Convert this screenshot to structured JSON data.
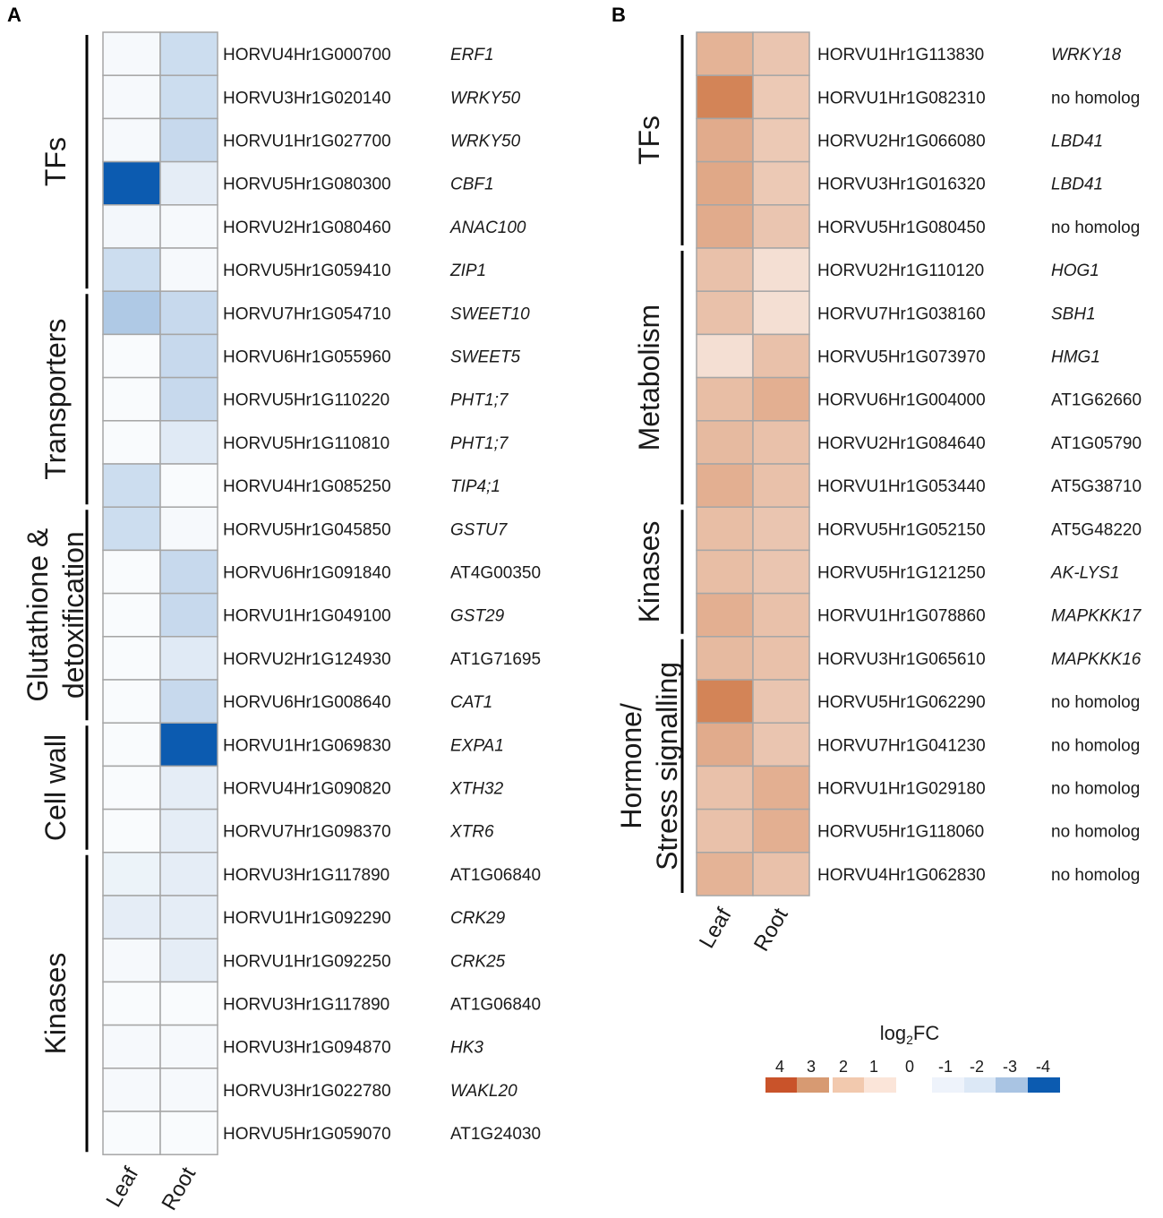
{
  "chart_data": [
    {
      "type": "heatmap",
      "panel_label": "A",
      "columns": [
        "Leaf",
        "Root"
      ],
      "groups": [
        {
          "name": "TFs",
          "label_lines": [
            "TFs"
          ],
          "rows": [
            {
              "gene": "HORVU4Hr1G000700",
              "homolog": "ERF1",
              "italic": true,
              "values": [
                -0.5,
                -1.5
              ]
            },
            {
              "gene": "HORVU3Hr1G020140",
              "homolog": "WRKY50",
              "italic": true,
              "values": [
                -0.5,
                -1.5
              ]
            },
            {
              "gene": "HORVU1Hr1G027700",
              "homolog": "WRKY50",
              "italic": true,
              "values": [
                -0.5,
                -1.6
              ]
            },
            {
              "gene": "HORVU5Hr1G080300",
              "homolog": "CBF1",
              "italic": true,
              "values": [
                -4,
                -1
              ]
            },
            {
              "gene": "HORVU2Hr1G080460",
              "homolog": "ANAC100",
              "italic": true,
              "values": [
                -0.6,
                -0.5
              ]
            },
            {
              "gene": "HORVU5Hr1G059410",
              "homolog": "ZIP1",
              "italic": true,
              "values": [
                -1.5,
                -0.5
              ]
            }
          ]
        },
        {
          "name": "Transporters",
          "label_lines": [
            "Transporters"
          ],
          "rows": [
            {
              "gene": "HORVU7Hr1G054710",
              "homolog": "SWEET10",
              "italic": true,
              "values": [
                -2,
                -1.6
              ]
            },
            {
              "gene": "HORVU6Hr1G055960",
              "homolog": "SWEET5",
              "italic": true,
              "values": [
                -0.4,
                -1.6
              ]
            },
            {
              "gene": "HORVU5Hr1G110220",
              "homolog": "PHT1;7",
              "italic": true,
              "values": [
                -0.4,
                -1.6
              ]
            },
            {
              "gene": "HORVU5Hr1G110810",
              "homolog": "PHT1;7",
              "italic": true,
              "values": [
                -0.4,
                -1.1
              ]
            },
            {
              "gene": "HORVU4Hr1G085250",
              "homolog": "TIP4;1",
              "italic": true,
              "values": [
                -1.5,
                -0.4
              ]
            }
          ]
        },
        {
          "name": "Glutathione & detoxification",
          "label_lines": [
            "Glutathione &",
            "detoxification"
          ],
          "rows": [
            {
              "gene": "HORVU5Hr1G045850",
              "homolog": "GSTU7",
              "italic": true,
              "values": [
                -1.5,
                -0.5
              ]
            },
            {
              "gene": "HORVU6Hr1G091840",
              "homolog": "AT4G00350",
              "italic": false,
              "values": [
                -0.4,
                -1.6
              ]
            },
            {
              "gene": "HORVU1Hr1G049100",
              "homolog": "GST29",
              "italic": true,
              "values": [
                -0.4,
                -1.6
              ]
            },
            {
              "gene": "HORVU2Hr1G124930",
              "homolog": "AT1G71695",
              "italic": false,
              "values": [
                -0.4,
                -1.1
              ]
            },
            {
              "gene": "HORVU6Hr1G008640",
              "homolog": "CAT1",
              "italic": true,
              "values": [
                -0.4,
                -1.6
              ]
            }
          ]
        },
        {
          "name": "Cell wall",
          "label_lines": [
            "Cell wall"
          ],
          "rows": [
            {
              "gene": "HORVU1Hr1G069830",
              "homolog": "EXPA1",
              "italic": true,
              "values": [
                -0.4,
                -4
              ]
            },
            {
              "gene": "HORVU4Hr1G090820",
              "homolog": "XTH32",
              "italic": true,
              "values": [
                -0.4,
                -1
              ]
            },
            {
              "gene": "HORVU7Hr1G098370",
              "homolog": "XTR6",
              "italic": true,
              "values": [
                -0.4,
                -1
              ]
            }
          ]
        },
        {
          "name": "Kinases",
          "label_lines": [
            "Kinases"
          ],
          "rows": [
            {
              "gene": "HORVU3Hr1G117890",
              "homolog": "AT1G06840",
              "italic": false,
              "values": [
                -0.8,
                -1
              ]
            },
            {
              "gene": "HORVU1Hr1G092290",
              "homolog": "CRK29",
              "italic": true,
              "values": [
                -1,
                -1
              ]
            },
            {
              "gene": "HORVU1Hr1G092250",
              "homolog": "CRK25",
              "italic": true,
              "values": [
                -0.5,
                -1
              ]
            },
            {
              "gene": "HORVU3Hr1G117890",
              "homolog": "AT1G06840",
              "italic": false,
              "values": [
                -0.4,
                -0.4
              ]
            },
            {
              "gene": "HORVU3Hr1G094870",
              "homolog": "HK3",
              "italic": true,
              "values": [
                -0.5,
                -0.5
              ]
            },
            {
              "gene": "HORVU3Hr1G022780",
              "homolog": "WAKL20",
              "italic": true,
              "values": [
                -0.5,
                -0.5
              ]
            },
            {
              "gene": "HORVU5Hr1G059070",
              "homolog": "AT1G24030",
              "italic": false,
              "values": [
                -0.4,
                -0.4
              ]
            }
          ]
        }
      ]
    },
    {
      "type": "heatmap",
      "panel_label": "B",
      "columns": [
        "Leaf",
        "Root"
      ],
      "groups": [
        {
          "name": "TFs",
          "label_lines": [
            "TFs"
          ],
          "rows": [
            {
              "gene": "HORVU1Hr1G113830",
              "homolog": "WRKY18",
              "italic": true,
              "values": [
                1.6,
                1.1
              ]
            },
            {
              "gene": "HORVU1Hr1G082310",
              "homolog": "no homolog",
              "italic": false,
              "values": [
                3,
                1
              ]
            },
            {
              "gene": "HORVU2Hr1G066080",
              "homolog": "LBD41",
              "italic": true,
              "values": [
                1.8,
                1
              ]
            },
            {
              "gene": "HORVU3Hr1G016320",
              "homolog": "LBD41",
              "italic": true,
              "values": [
                1.9,
                1
              ]
            },
            {
              "gene": "HORVU5Hr1G080450",
              "homolog": "no homolog",
              "italic": false,
              "values": [
                1.8,
                1.1
              ]
            }
          ]
        },
        {
          "name": "Metabolism",
          "label_lines": [
            "Metabolism"
          ],
          "rows": [
            {
              "gene": "HORVU2Hr1G110120",
              "homolog": "HOG1",
              "italic": true,
              "values": [
                1.2,
                0.5
              ]
            },
            {
              "gene": "HORVU7Hr1G038160",
              "homolog": "SBH1",
              "italic": true,
              "values": [
                1.2,
                0.5
              ]
            },
            {
              "gene": "HORVU5Hr1G073970",
              "homolog": "HMG1",
              "italic": true,
              "values": [
                0.5,
                1.2
              ]
            },
            {
              "gene": "HORVU6Hr1G004000",
              "homolog": "AT1G62660",
              "italic": false,
              "values": [
                1.3,
                1.7
              ]
            },
            {
              "gene": "HORVU2Hr1G084640",
              "homolog": "AT1G05790",
              "italic": false,
              "values": [
                1.4,
                1.2
              ]
            },
            {
              "gene": "HORVU1Hr1G053440",
              "homolog": "AT5G38710",
              "italic": false,
              "values": [
                1.7,
                1.2
              ]
            }
          ]
        },
        {
          "name": "Kinases",
          "label_lines": [
            "Kinases"
          ],
          "rows": [
            {
              "gene": "HORVU5Hr1G052150",
              "homolog": "AT5G48220",
              "italic": false,
              "values": [
                1.3,
                1.1
              ]
            },
            {
              "gene": "HORVU5Hr1G121250",
              "homolog": "AK-LYS1",
              "italic": true,
              "values": [
                1.3,
                1.1
              ]
            },
            {
              "gene": "HORVU1Hr1G078860",
              "homolog": "MAPKKK17",
              "italic": true,
              "values": [
                1.7,
                1.2
              ]
            }
          ]
        },
        {
          "name": "Hormone/ Stress signalling",
          "label_lines": [
            "Hormone/",
            "Stress signalling"
          ],
          "rows": [
            {
              "gene": "HORVU3Hr1G065610",
              "homolog": "MAPKKK16",
              "italic": true,
              "values": [
                1.4,
                1.2
              ]
            },
            {
              "gene": "HORVU5Hr1G062290",
              "homolog": "no homolog",
              "italic": false,
              "values": [
                3,
                1.1
              ]
            },
            {
              "gene": "HORVU7Hr1G041230",
              "homolog": "no homolog",
              "italic": false,
              "values": [
                1.8,
                1.1
              ]
            },
            {
              "gene": "HORVU1Hr1G029180",
              "homolog": "no homolog",
              "italic": false,
              "values": [
                1.2,
                1.7
              ]
            },
            {
              "gene": "HORVU5Hr1G118060",
              "homolog": "no homolog",
              "italic": false,
              "values": [
                1.2,
                1.7
              ]
            },
            {
              "gene": "HORVU4Hr1G062830",
              "homolog": "no homolog",
              "italic": false,
              "values": [
                1.6,
                1.2
              ]
            }
          ]
        }
      ]
    }
  ],
  "legend": {
    "title_main": "log",
    "title_sub": "2",
    "title_tail": "FC",
    "labels": [
      "4",
      "3",
      "2",
      "1",
      "0",
      "-1",
      "-2",
      "-3",
      "-4"
    ],
    "swatches": [
      {
        "value": 4,
        "color": "#C9532A"
      },
      {
        "value": 3,
        "color": "#D79A72"
      },
      {
        "value": 2,
        "color": "#F2C9AE"
      },
      {
        "value": 1,
        "color": "#FBE5D9"
      },
      {
        "value": 0,
        "color": "#FFFFFF"
      },
      {
        "value": -1,
        "color": "#EEF3FB"
      },
      {
        "value": -2,
        "color": "#DCE8F6"
      },
      {
        "value": -3,
        "color": "#A9C4E3"
      },
      {
        "value": -4,
        "color": "#0C5BB0"
      }
    ]
  },
  "colors": {
    "cell_border": "#A6A6A6",
    "bracket": "#000000",
    "text": "#1A1A1A",
    "pos_max": "#C9672E",
    "neg_max": "#0C5BB0",
    "neutral": "#FFFFFF"
  }
}
